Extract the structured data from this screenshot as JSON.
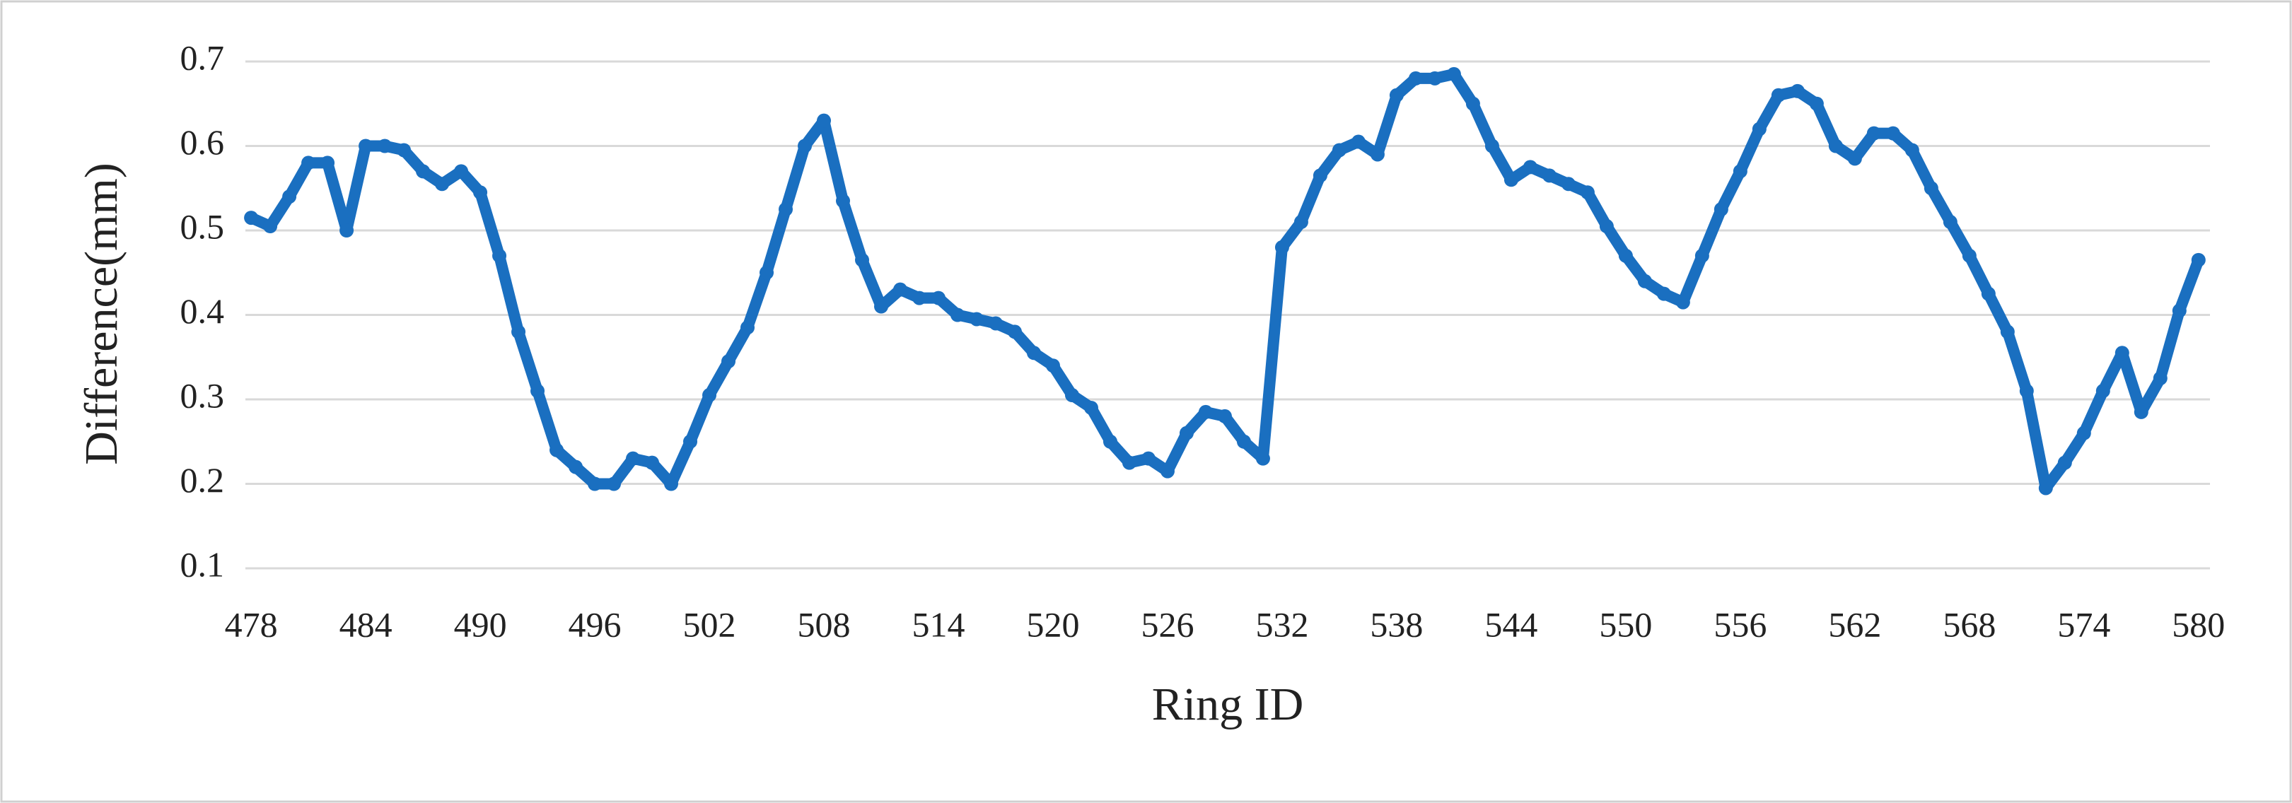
{
  "chart_data": {
    "type": "line",
    "x_label": "Ring ID",
    "y_label": "Difference(mm)",
    "x": [
      478,
      479,
      480,
      481,
      482,
      483,
      484,
      485,
      486,
      487,
      488,
      489,
      490,
      491,
      492,
      493,
      494,
      495,
      496,
      497,
      498,
      499,
      500,
      501,
      502,
      503,
      504,
      505,
      506,
      507,
      508,
      509,
      510,
      511,
      512,
      513,
      514,
      515,
      516,
      517,
      518,
      519,
      520,
      521,
      522,
      523,
      524,
      525,
      526,
      527,
      528,
      529,
      530,
      531,
      532,
      533,
      534,
      535,
      536,
      537,
      538,
      539,
      540,
      541,
      542,
      543,
      544,
      545,
      546,
      547,
      548,
      549,
      550,
      551,
      552,
      553,
      554,
      555,
      556,
      557,
      558,
      559,
      560,
      561,
      562,
      563,
      564,
      565,
      566,
      567,
      568,
      569,
      570,
      571,
      572,
      573,
      574,
      575,
      576,
      577,
      578,
      579,
      580
    ],
    "series": [
      {
        "name": "Difference",
        "color": "#1a6fc0",
        "values": [
          0.515,
          0.505,
          0.54,
          0.58,
          0.58,
          0.5,
          0.6,
          0.6,
          0.595,
          0.57,
          0.555,
          0.57,
          0.545,
          0.47,
          0.38,
          0.31,
          0.24,
          0.22,
          0.2,
          0.2,
          0.23,
          0.225,
          0.2,
          0.25,
          0.305,
          0.345,
          0.385,
          0.45,
          0.525,
          0.6,
          0.63,
          0.535,
          0.465,
          0.41,
          0.43,
          0.42,
          0.42,
          0.4,
          0.395,
          0.39,
          0.38,
          0.355,
          0.34,
          0.305,
          0.29,
          0.25,
          0.225,
          0.23,
          0.215,
          0.26,
          0.285,
          0.28,
          0.25,
          0.23,
          0.48,
          0.51,
          0.565,
          0.595,
          0.605,
          0.59,
          0.66,
          0.68,
          0.68,
          0.685,
          0.65,
          0.6,
          0.56,
          0.575,
          0.565,
          0.555,
          0.545,
          0.505,
          0.47,
          0.44,
          0.425,
          0.415,
          0.47,
          0.525,
          0.57,
          0.62,
          0.66,
          0.665,
          0.65,
          0.6,
          0.585,
          0.615,
          0.615,
          0.595,
          0.55,
          0.51,
          0.47,
          0.425,
          0.38,
          0.31,
          0.195,
          0.225,
          0.26,
          0.31,
          0.355,
          0.285,
          0.325,
          0.405,
          0.465
        ]
      }
    ],
    "xlim": [
      477.7,
      580.6
    ],
    "xticks": [
      478,
      484,
      490,
      496,
      502,
      508,
      514,
      520,
      526,
      532,
      538,
      544,
      550,
      556,
      562,
      568,
      574,
      580
    ],
    "ylim": [
      0.1,
      0.7
    ],
    "yticks": [
      0.1,
      0.2,
      0.3,
      0.4,
      0.5,
      0.6,
      0.7
    ],
    "grid": true
  }
}
